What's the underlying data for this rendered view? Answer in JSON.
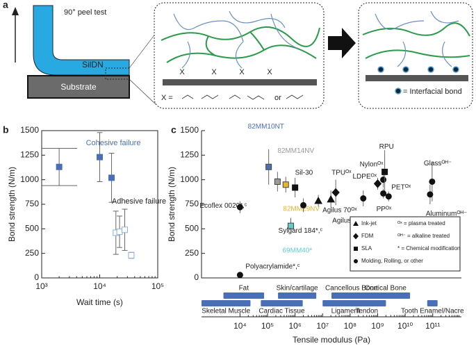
{
  "panel_a": {
    "label": "a",
    "peel_test": "90° peel test",
    "film": "SilDN",
    "substrate": "Substrate",
    "x_marker": "X",
    "x_equals": "X =",
    "or": "or",
    "legend": "= Interfacial bond"
  },
  "chart_data": [
    {
      "type": "scatter",
      "panel_label": "b",
      "xlabel": "Wait time (s)",
      "ylabel": "Bond strength (N/m)",
      "log_x": true,
      "xlim": [
        1000,
        100000
      ],
      "xticks": [
        {
          "value": 1000,
          "label": "10³"
        },
        {
          "value": 10000,
          "label": "10⁴"
        },
        {
          "value": 100000,
          "label": "10⁵"
        }
      ],
      "ylim": [
        0,
        1500
      ],
      "yticks": [
        0,
        250,
        500,
        750,
        1000,
        1250,
        1500
      ],
      "series": [
        {
          "name": "Cohesive failure",
          "color": "#4a6fb5",
          "filled": true,
          "x": [
            2000,
            10000,
            16000
          ],
          "values": [
            1130,
            1230,
            1020
          ],
          "errors": [
            190,
            250,
            250
          ]
        },
        {
          "name": "Adhesive failure",
          "color": "#4a6fb5",
          "filled": false,
          "x": [
            19000,
            22000,
            27000,
            35000
          ],
          "values": [
            460,
            470,
            490,
            230
          ],
          "errors": [
            220,
            160,
            210,
            30
          ]
        }
      ]
    },
    {
      "type": "scatter",
      "panel_label": "c",
      "xlabel": "Tensile modulus (Pa)",
      "ylabel": "Bond strength (N/m)",
      "log_x": true,
      "xlim": [
        400,
        1100000000000
      ],
      "xticks": [
        {
          "value": 10000,
          "label": "10⁴"
        },
        {
          "value": 100000,
          "label": "10⁵"
        },
        {
          "value": 1000000,
          "label": "10⁶"
        },
        {
          "value": 10000000,
          "label": "10⁷"
        },
        {
          "value": 100000000,
          "label": "10⁸"
        },
        {
          "value": 1000000000,
          "label": "10⁹"
        },
        {
          "value": 10000000000,
          "label": "10¹⁰"
        },
        {
          "value": 100000000000,
          "label": "10¹¹"
        }
      ],
      "ylim": [
        0,
        1500
      ],
      "yticks": [
        0,
        250,
        500,
        750,
        1000,
        1250,
        1500
      ],
      "points": [
        {
          "label": "Polyacrylamide*,ᶜ",
          "x": 10000,
          "value": 30,
          "error": 0,
          "marker": "circle",
          "color": "#111111"
        },
        {
          "label": "Ecoflex 0020*,ᶜ",
          "x": 10000,
          "value": 720,
          "error": 60,
          "marker": "circle",
          "color": "#111111"
        },
        {
          "label": "82MM10NT",
          "x": 110000,
          "value": 1130,
          "error": 180,
          "marker": "square",
          "color": "#4a6fb5"
        },
        {
          "label": "82MM14NV",
          "x": 230000,
          "value": 980,
          "error": 100,
          "marker": "square",
          "color": "#9a9a9a"
        },
        {
          "label": "82MM29NV",
          "x": 460000,
          "value": 950,
          "error": 80,
          "marker": "square",
          "color": "#e8b52e"
        },
        {
          "label": "Sil-30",
          "x": 1000000,
          "value": 920,
          "error": 100,
          "marker": "square",
          "color": "#111111"
        },
        {
          "label": "Sylgard 184*,ᶜ",
          "x": 2000000,
          "value": 740,
          "error": 70,
          "marker": "circle",
          "color": "#111111"
        },
        {
          "label": "69MM40*",
          "x": 700000,
          "value": 530,
          "error": 80,
          "marker": "square",
          "color": "#5ecfc9"
        },
        {
          "label": "Agilus 70ᴼˣ",
          "x": 7000000,
          "value": 785,
          "error": 60,
          "marker": "triangle",
          "color": "#111111"
        },
        {
          "label": "Agilus 95ᴼˣ",
          "x": 20000000,
          "value": 800,
          "error": 90,
          "marker": "triangle",
          "color": "#111111"
        },
        {
          "label": "TPUᴼˣ",
          "x": 30000000,
          "value": 870,
          "error": 130,
          "marker": "diamond",
          "color": "#111111"
        },
        {
          "x": 300000000,
          "value": 810,
          "error": 80,
          "marker": "circle",
          "color": "#111111"
        },
        {
          "label": "LDPEᴼˣ",
          "x": 1000000000,
          "value": 960,
          "error": 60,
          "marker": "diamond",
          "color": "#111111"
        },
        {
          "label": "Nylonᴼˣ",
          "x": 1600000000,
          "value": 1000,
          "error": 80,
          "marker": "circle",
          "color": "#111111"
        },
        {
          "label": "RPU",
          "x": 1800000000,
          "value": 1080,
          "error": 220,
          "marker": "square",
          "color": "#111111"
        },
        {
          "label": "PPᴼˣ",
          "x": 1600000000,
          "value": 860,
          "error": 50,
          "marker": "circle",
          "color": "#111111"
        },
        {
          "label": "PETᴼˣ",
          "x": 2500000000,
          "value": 830,
          "error": 50,
          "marker": "circle",
          "color": "#111111"
        },
        {
          "label": "Glassᴼᴴ⁻",
          "x": 95000000000,
          "value": 980,
          "error": 200,
          "marker": "circle",
          "color": "#111111"
        },
        {
          "label": "Aluminumᴼᴴ⁻",
          "x": 80000000000,
          "value": 850,
          "error": 100,
          "marker": "circle",
          "color": "#111111"
        }
      ],
      "legend": [
        {
          "name": "Ink-jet",
          "marker": "triangle"
        },
        {
          "name": "FDM",
          "marker": "diamond"
        },
        {
          "name": "SLA",
          "marker": "square"
        },
        {
          "name": "Molding, Rolling, or other",
          "marker": "circle"
        }
      ],
      "notes": [
        "ᴼˣ = plasma treated",
        "ᴼᴴ⁻ = alkaline treated",
        "* = Chemical modification"
      ],
      "tissue_color": "#4a6fb5",
      "tissues": [
        {
          "name": "Fat",
          "range": [
            2500,
            75000
          ]
        },
        {
          "name": "Skin/cartilage",
          "range": [
            240000,
            5900000
          ]
        },
        {
          "name": "Cancellous Bone",
          "range": [
            21000000,
            600000000
          ]
        },
        {
          "name": "Cortical Bone",
          "range": [
            250000000,
            15000000000
          ]
        },
        {
          "name": "Skeletal Muscle",
          "range": [
            400,
            24000
          ]
        },
        {
          "name": "Cardiac Tissue",
          "range": [
            57000,
            1900000
          ]
        },
        {
          "name": "Ligament",
          "range": [
            10000000,
            460000000
          ]
        },
        {
          "name": "Tendon",
          "range": [
            80000000,
            2000000000
          ]
        },
        {
          "name": "Tooth Enamel/Nacre",
          "range": [
            63000000000,
            150000000000
          ]
        }
      ]
    }
  ]
}
